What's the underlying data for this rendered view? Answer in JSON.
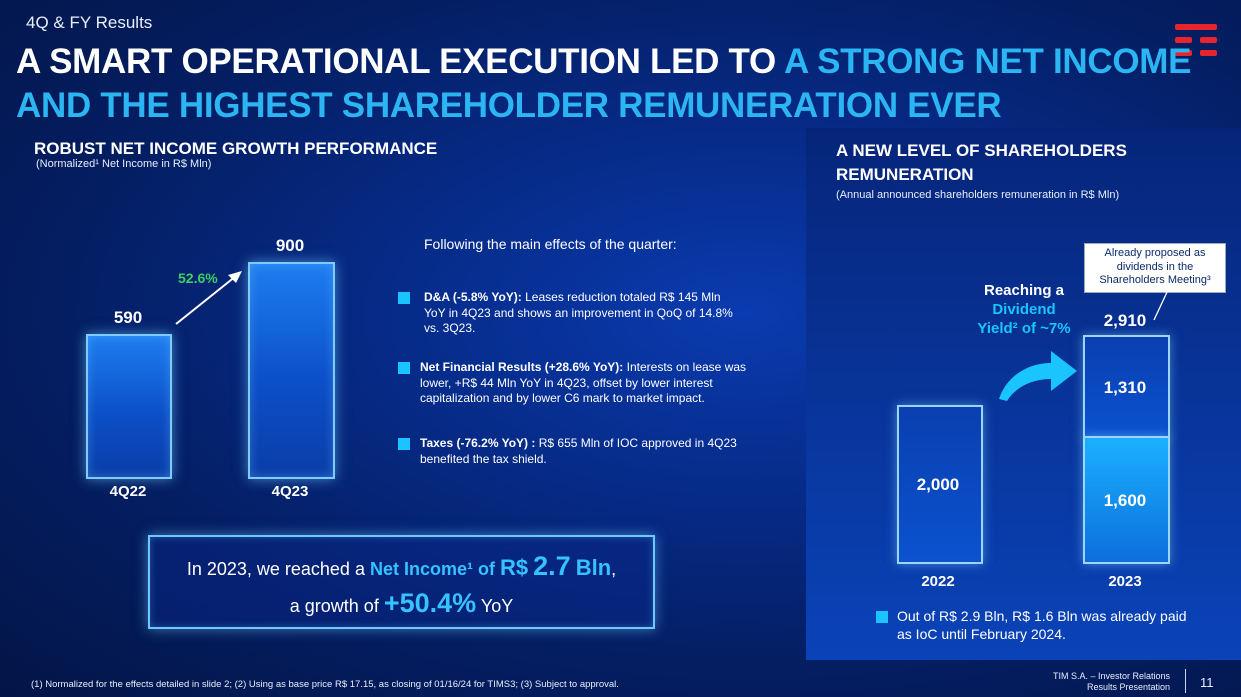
{
  "slide": {
    "section_label": "4Q & FY Results",
    "title_part1": "A SMART OPERATIONAL EXECUTION LED TO ",
    "title_part2": "A STRONG NET INCOME AND THE HIGHEST SHAREHOLDER REMUNERATION EVER",
    "logo_icon": "tim-logo-icon",
    "accent_color": "#2bb5f2"
  },
  "left_chart": {
    "heading": "ROBUST NET INCOME GROWTH PERFORMANCE",
    "subheading": "(Normalized¹ Net Income in R$ Mln)",
    "growth_label": "52.6%",
    "bars": [
      {
        "category": "4Q22",
        "label": "590"
      },
      {
        "category": "4Q23",
        "label": "900"
      }
    ]
  },
  "chart_data": [
    {
      "type": "bar",
      "title": "ROBUST NET INCOME GROWTH PERFORMANCE",
      "subtitle": "(Normalized¹ Net Income in R$ Mln)",
      "categories": [
        "4Q22",
        "4Q23"
      ],
      "values": [
        590,
        900
      ],
      "annotation": "52.6%",
      "ylim": [
        0,
        1000
      ]
    },
    {
      "type": "bar",
      "title": "A NEW LEVEL OF SHAREHOLDERS REMUNERATION",
      "subtitle": "(Annual announced shareholders remuneration in R$ Mln)",
      "categories": [
        "2022",
        "2023"
      ],
      "series": [
        {
          "name": "paid",
          "values": [
            2000,
            1600
          ]
        },
        {
          "name": "proposed",
          "values": [
            0,
            1310
          ]
        }
      ],
      "totals": [
        2000,
        2910
      ],
      "ylim": [
        0,
        3200
      ]
    }
  ],
  "effects": {
    "heading": "Following the main effects of the quarter:",
    "items": [
      {
        "label": "D&A (-5.8% YoY):",
        "text": " Leases reduction totaled R$ 145 Mln YoY in 4Q23 and shows an improvement in QoQ of 14.8% vs. 3Q23."
      },
      {
        "label": "Net Financial Results (+28.6% YoY):",
        "text": " Interests on lease was lower, +R$ 44 Mln YoY in 4Q23, offset by lower interest capitalization and by lower C6 mark to market impact."
      },
      {
        "label": "Taxes (-76.2% YoY) :",
        "text": " R$ 655 Mln of IOC approved in 4Q23 benefited the tax shield."
      }
    ]
  },
  "callout": {
    "prefix": "In 2023, we reached a ",
    "net_income_label": "Net Income¹ of",
    "currency": "R$",
    "amount": "2.7",
    "unit": "Bln",
    "comma": ",",
    "line2_prefix": "a growth of ",
    "growth": "+50.4%",
    "yoy": "YoY"
  },
  "right_chart": {
    "heading": "A NEW LEVEL OF SHAREHOLDERS REMUNERATION",
    "subheading": "(Annual announced shareholders remuneration in R$ Mln)",
    "bar_2022_label": "2,000",
    "bar_2023_top_label": "1,310",
    "bar_2023_bottom_label": "1,600",
    "total_2023": "2,910",
    "cat_2022": "2022",
    "cat_2023": "2023",
    "proposed_note": "Already proposed as dividends in the Shareholders Meeting³",
    "reaching_line1": "Reaching a",
    "reaching_line2": "Dividend",
    "reaching_line3": "Yield² of ~7%",
    "note": "Out of R$ 2.9 Bln, R$ 1.6 Bln was already paid as IoC until February 2024."
  },
  "footer": {
    "footnote": "(1)    Normalized for the effects detailed in slide 2; (2)    Using as base price R$ 17.15, as closing of 01/16/24 for TIMS3; (3)    Subject to approval.",
    "company_line1": "TIM S.A. – Investor Relations",
    "company_line2": "Results Presentation",
    "page_number": "11"
  }
}
